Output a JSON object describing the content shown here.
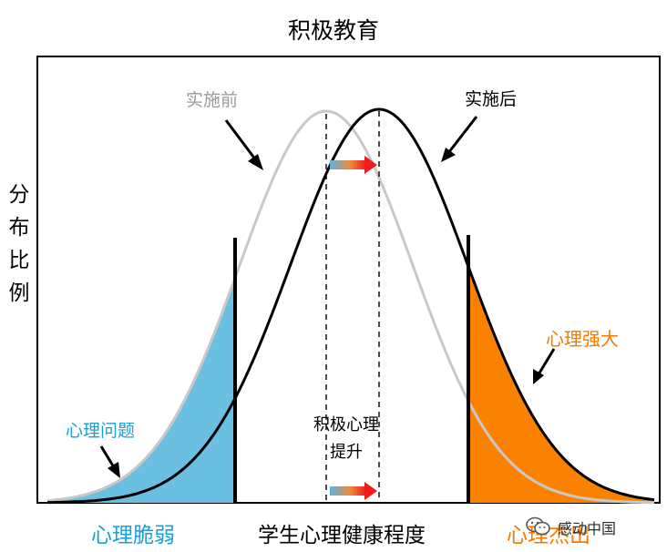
{
  "title": "积极教育",
  "y_axis_label": "分布比例",
  "x_axis_label": "学生心理健康程度",
  "curves": {
    "before_label": "实施前",
    "after_label": "实施后"
  },
  "annotations": {
    "strong": "心理强大",
    "problem": "心理问题",
    "boost_line1": "积极心理",
    "boost_line2": "提升"
  },
  "categories": {
    "left": "心理脆弱",
    "right": "心理杰出"
  },
  "watermark": "感动中国",
  "colors": {
    "before_curve": "#c8c8c8",
    "after_curve": "#000000",
    "fragile_fill": "#6bbfe0",
    "outstanding_fill": "#fb8200",
    "label_blue": "#1aa1d6",
    "label_orange": "#f47a00"
  },
  "icons": {
    "shift_arrow": "gradient-right-arrow",
    "watermark": "wechat-icon"
  }
}
